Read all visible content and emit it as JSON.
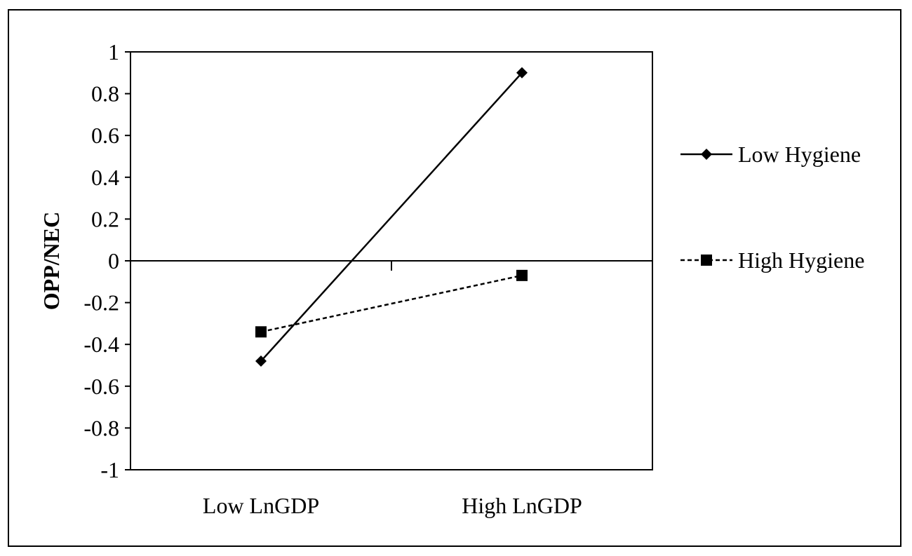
{
  "chart_data": {
    "type": "line",
    "title": "",
    "xlabel": "",
    "ylabel": "OPP/NEC",
    "categories": [
      "Low LnGDP",
      "High LnGDP"
    ],
    "ylim": [
      -1,
      1
    ],
    "yticks": [
      1,
      0.8,
      0.6,
      0.4,
      0.2,
      0,
      -0.2,
      -0.4,
      -0.6,
      -0.8,
      -1
    ],
    "ytick_labels": [
      "1",
      "0.8",
      "0.6",
      "0.4",
      "0.2",
      "0",
      "-0.2",
      "-0.4",
      "-0.6",
      "-0.8",
      "-1"
    ],
    "grid": false,
    "legend_position": "right",
    "series": [
      {
        "name": "Low Hygiene",
        "values": [
          -0.48,
          0.9
        ],
        "marker": "diamond",
        "line_style": "solid",
        "color": "#000000"
      },
      {
        "name": "High Hygiene",
        "values": [
          -0.34,
          -0.07
        ],
        "marker": "square",
        "line_style": "dashed",
        "color": "#000000"
      }
    ]
  }
}
